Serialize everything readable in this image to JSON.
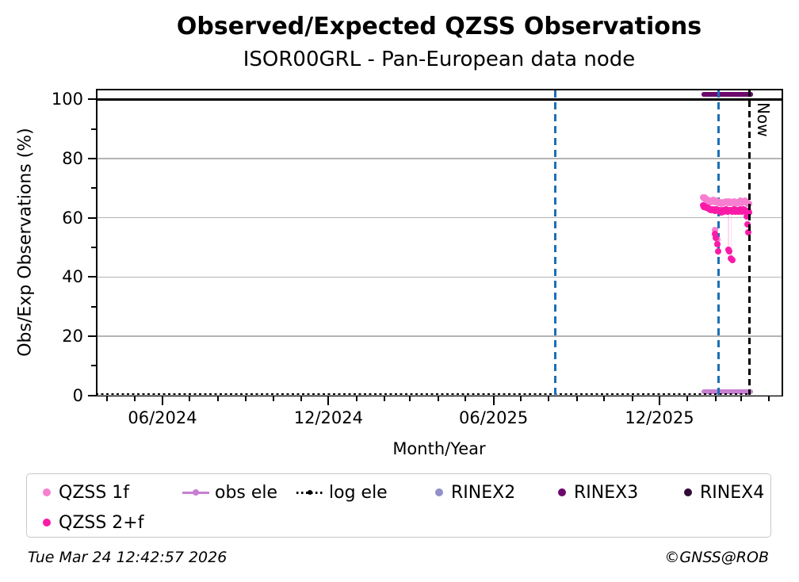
{
  "title": "Observed/Expected QZSS Observations",
  "subtitle": "ISOR00GRL - Pan-European data node",
  "footer": {
    "timestamp": "Tue Mar 24 12:42:57 2026",
    "credit": "©GNSS@ROB"
  },
  "chart_data": {
    "type": "scatter",
    "title": "Observed/Expected QZSS Observations",
    "subtitle": "ISOR00GRL - Pan-European data node",
    "xlabel": "Month/Year",
    "ylabel": "Obs/Exp Observations (%)",
    "now_label": "Now",
    "ylim": [
      -0.35,
      103.6
    ],
    "x_range": [
      "2024-04-02",
      "2026-04-30"
    ],
    "grid": true,
    "grid_values": [
      0,
      20,
      40,
      60,
      80,
      100
    ],
    "y_major_ticks": [
      0,
      20,
      40,
      60,
      80,
      100
    ],
    "y_minor_ticks": [
      10,
      30,
      50,
      70,
      90
    ],
    "x_major_ticks": [
      {
        "label": "06/2024",
        "date": "2024-06-15"
      },
      {
        "label": "12/2024",
        "date": "2024-12-15"
      },
      {
        "label": "06/2025",
        "date": "2025-06-15"
      },
      {
        "label": "12/2025",
        "date": "2025-12-15"
      }
    ],
    "x_minor_tick_step": "monthly",
    "reference_line_100": {
      "value": 100,
      "color": "#000000"
    },
    "event_vlines": {
      "color": "#1b6fb4",
      "style": "dashed",
      "dates": [
        "2025-08-22",
        "2026-02-18"
      ]
    },
    "now_vline": {
      "color": "#000000",
      "style": "dashed",
      "date": "2026-03-24"
    },
    "series": [
      {
        "id": "qzss_1f",
        "label": "QZSS 1f",
        "color": "#f87fd0",
        "kind": "scatter",
        "start": "2026-02-01",
        "step_days": 1,
        "values": [
          67.0,
          66.6,
          66.8,
          66.3,
          65.9,
          66.1,
          65.7,
          65.4,
          65.6,
          65.2,
          65.8,
          66.0,
          65.6,
          65.3,
          65.5,
          65.8,
          65.4,
          65.1,
          65.4,
          65.0,
          64.7,
          65.1,
          65.4,
          65.0,
          65.3,
          65.6,
          65.2,
          64.9,
          65.2,
          65.5,
          65.1,
          65.4,
          65.0,
          65.3,
          65.6,
          65.2,
          64.8,
          65.1,
          65.4,
          65.0,
          65.3,
          65.7,
          65.4,
          65.0,
          65.2,
          65.6,
          65.9,
          65.5,
          65.2,
          64.8,
          65.1,
          64.7
        ],
        "extra_points": [
          {
            "date": "2026-02-14",
            "value": 55.8
          },
          {
            "date": "2026-02-17",
            "value": 52.8
          }
        ]
      },
      {
        "id": "qzss_2f",
        "label": "QZSS 2+f",
        "color": "#fa1ba8",
        "kind": "scatter",
        "start": "2026-02-01",
        "step_days": 1,
        "values": [
          64.2,
          63.8,
          64.0,
          63.6,
          63.3,
          63.5,
          63.1,
          62.8,
          63.0,
          62.6,
          62.9,
          62.5,
          62.8,
          62.4,
          62.7,
          63.0,
          62.6,
          62.3,
          62.6,
          62.2,
          61.9,
          62.3,
          62.6,
          62.2,
          62.5,
          62.8,
          62.4,
          62.1,
          62.4,
          62.7,
          62.3,
          62.6,
          62.2,
          62.5,
          62.8,
          62.4,
          62.0,
          62.3,
          62.6,
          62.2,
          62.5,
          62.9,
          62.6,
          62.2,
          62.4,
          62.8,
          62.5,
          62.1,
          62.4,
          62.0,
          62.3,
          61.8
        ],
        "extra_points": [
          {
            "date": "2026-02-14",
            "value": 54.5
          },
          {
            "date": "2026-02-15",
            "value": 53.3
          },
          {
            "date": "2026-02-17",
            "value": 51.0
          },
          {
            "date": "2026-02-18",
            "value": 48.6
          },
          {
            "date": "2026-03-01",
            "value": 49.2
          },
          {
            "date": "2026-03-02",
            "value": 48.7
          },
          {
            "date": "2026-03-04",
            "value": 46.3
          },
          {
            "date": "2026-03-05",
            "value": 45.8
          },
          {
            "date": "2026-03-21",
            "value": 60.4
          },
          {
            "date": "2026-03-22",
            "value": 57.7
          },
          {
            "date": "2026-03-23",
            "value": 55.2
          }
        ]
      },
      {
        "id": "obs_ele",
        "label": "obs ele",
        "color": "#c77fd2",
        "kind": "hline_segment",
        "from": "2026-02-01",
        "to": "2026-03-26",
        "value": 1.2,
        "thickness": 6
      },
      {
        "id": "log_ele",
        "label": "log ele",
        "color": "#000000",
        "kind": "dotted_hline",
        "from": "2024-04-02",
        "to": "2026-03-24",
        "value": 0.4,
        "thickness": 2.5
      },
      {
        "id": "rinex2",
        "label": "RINEX2",
        "color": "#9090cb",
        "kind": "scatter",
        "start": null,
        "step_days": 1,
        "values": [],
        "extra_points": []
      },
      {
        "id": "rinex3",
        "label": "RINEX3",
        "color": "#6d096d",
        "kind": "hline_segment",
        "from": "2026-02-01",
        "to": "2026-03-26",
        "value": 101.7,
        "thickness": 5.5
      },
      {
        "id": "rinex4",
        "label": "RINEX4",
        "color": "#310b38",
        "kind": "scatter",
        "start": null,
        "step_days": 1,
        "values": [],
        "extra_points": []
      }
    ],
    "faint_connectors": {
      "color": "rgba(250,130,205,0.3)",
      "lines": [
        {
          "date": "2026-03-01",
          "v_from": 62.0,
          "v_to": 48.7
        },
        {
          "date": "2026-03-04",
          "v_from": 61.7,
          "v_to": 45.8
        }
      ]
    }
  },
  "legend": {
    "items": [
      {
        "label": "QZSS 1f",
        "marker": "dot",
        "color": "#f87fd0"
      },
      {
        "label": "obs ele",
        "marker": "line_dot",
        "color": "#c77fd2"
      },
      {
        "label": "log ele",
        "marker": "dotted_line",
        "color": "#000000"
      },
      {
        "label": "RINEX2",
        "marker": "dot",
        "color": "#9090cb"
      },
      {
        "label": "RINEX3",
        "marker": "dot",
        "color": "#6d096d"
      },
      {
        "label": "RINEX4",
        "marker": "dot",
        "color": "#310b38"
      },
      {
        "label": "QZSS 2+f",
        "marker": "dot",
        "color": "#fa1ba8"
      }
    ]
  }
}
